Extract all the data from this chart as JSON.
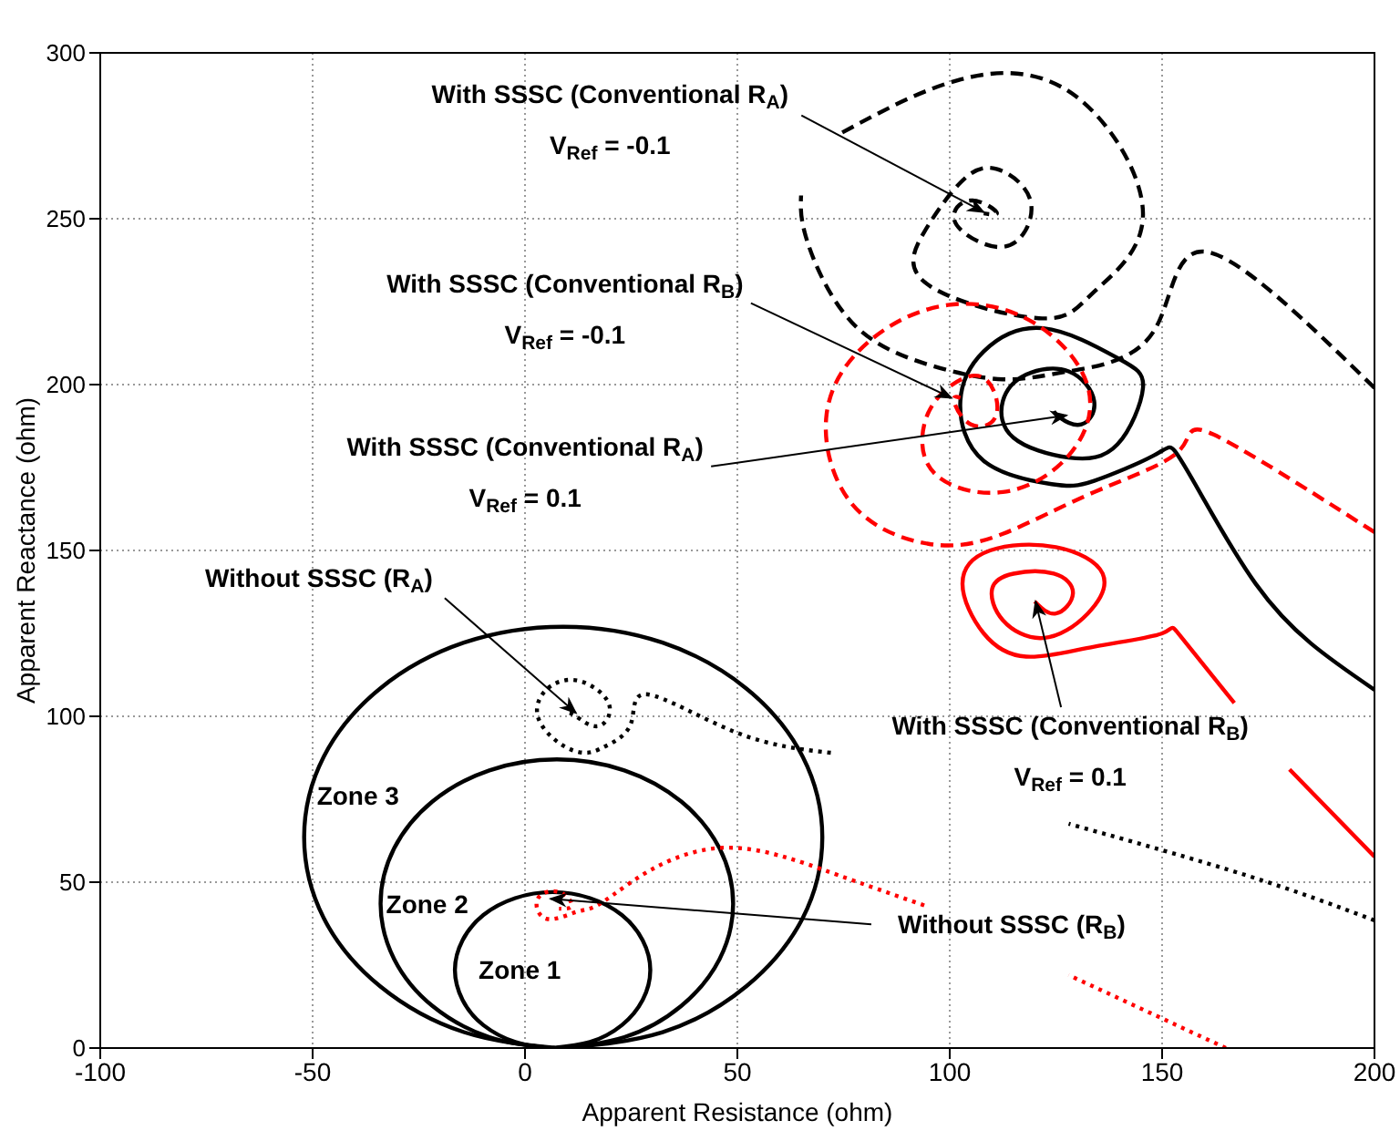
{
  "chart_data": {
    "type": "line",
    "xlabel": "Apparent Resistance (ohm)",
    "ylabel": "Apparent Reactance (ohm)",
    "xlim": [
      -100,
      200
    ],
    "xticks": [
      -100,
      -50,
      0,
      50,
      100,
      150,
      200
    ],
    "ylim": [
      0,
      300
    ],
    "yticks": [
      0,
      50,
      100,
      150,
      200,
      250,
      300
    ],
    "grid": true,
    "series": [
      {
        "name": "Zone 1",
        "color": "#000000",
        "line_style": "solid",
        "x": [
          6.5,
          15.3,
          22.8,
          27.7,
          29.5,
          27.7,
          22.8,
          15.3,
          6.5,
          -2.3,
          -9.8,
          -14.7,
          -16.5,
          -14.7,
          -9.8,
          -2.3,
          4.5
        ],
        "values": [
          0,
          1.8,
          6.9,
          14.5,
          23.5,
          32.5,
          40.1,
          45.2,
          47,
          45.2,
          40.1,
          32.5,
          23.5,
          14.5,
          6.9,
          1.8,
          0.1
        ]
      },
      {
        "name": "Zone 2",
        "color": "#000000",
        "line_style": "solid",
        "x": [
          7.5,
          23.4,
          36.8,
          45.8,
          49,
          45.8,
          36.8,
          23.4,
          7.5,
          -8.4,
          -21.8,
          -30.8,
          -34,
          -30.8,
          -21.8,
          -8.4,
          5.5
        ],
        "values": [
          0,
          3.3,
          12.7,
          26.8,
          43.5,
          60.2,
          74.3,
          83.7,
          87,
          83.7,
          74.3,
          60.2,
          43.5,
          26.8,
          12.7,
          3.3,
          0.1
        ]
      },
      {
        "name": "Zone 3",
        "color": "#000000",
        "line_style": "solid",
        "x": [
          9,
          32.4,
          52.1,
          65.4,
          70,
          65.4,
          52.1,
          32.4,
          9,
          -14.4,
          -34.1,
          -47.4,
          -52,
          -47.4,
          -34.1,
          -14.4,
          7
        ],
        "values": [
          0,
          4.8,
          18.6,
          39.2,
          63.5,
          87.8,
          108.4,
          122.2,
          127,
          122.2,
          108.4,
          87.8,
          63.5,
          39.2,
          18.6,
          4.8,
          0.1
        ]
      },
      {
        "color": "#000000",
        "line_style": "dotted",
        "x": [
          200,
          170,
          128,
          100,
          72,
          50,
          29,
          25,
          19,
          14,
          8,
          3,
          5,
          11,
          17,
          20,
          17,
          12,
          10
        ],
        "values": [
          38.5,
          52,
          67.6,
          null,
          89,
          95,
          106.6,
          98,
          91,
          89,
          92,
          100,
          108,
          111,
          108,
          102,
          97,
          100,
          101
        ]
      },
      {
        "color": "#ff0000",
        "line_style": "dotted",
        "x": [
          165,
          128,
          111,
          94,
          74,
          60,
          47,
          35,
          25,
          17,
          12,
          5,
          3,
          8,
          11,
          8
        ],
        "values": [
          0,
          22,
          null,
          43,
          52,
          58,
          60.4,
          57,
          50,
          43,
          41,
          39,
          45,
          47,
          43,
          42
        ]
      },
      {
        "color": "#000000",
        "line_style": "solid",
        "x": [
          200,
          185,
          172,
          160,
          153,
          148,
          134,
          124,
          108,
          102.5,
          108,
          122,
          139.5,
          145.5,
          139.5,
          128,
          115,
          112.5,
          118,
          128,
          134,
          131,
          126,
          124.5
        ],
        "values": [
          108,
          122,
          140,
          165,
          180,
          178.6,
          171,
          170,
          177,
          195,
          210,
          217,
          208,
          199,
          182,
          178,
          184,
          195,
          203,
          204,
          195,
          188,
          190,
          192
        ]
      },
      {
        "color": "#ff0000",
        "line_style": "solid",
        "x": [
          200,
          180,
          173,
          167,
          154,
          150,
          134,
          118,
          108,
          103,
          109.5,
          125,
          136,
          132.5,
          122,
          112.5,
          110,
          115,
          124.5,
          129,
          125,
          120
        ],
        "values": [
          57.7,
          84,
          null,
          104,
          124.7,
          125,
          121,
          118,
          125,
          140,
          150,
          151,
          143,
          131,
          123.6,
          129,
          138.5,
          143,
          143,
          137,
          131,
          134.6
        ]
      },
      {
        "color": "#000000",
        "line_style": "dashed",
        "x": [
          200,
          160.5,
          148,
          128,
          112.5,
          95,
          77,
          66.5,
          65,
          70,
          74.7,
          102.6,
          129.6,
          145.5,
          134,
          121,
          95,
          94,
          102.6,
          111,
          119,
          115.5,
          107,
          101,
          105,
          111,
          108
        ],
        "values": [
          199,
          240,
          216,
          204,
          201.6,
          206,
          218.7,
          243,
          257,
          null,
          276,
          292,
          287,
          251.6,
          228,
          220,
          230,
          246,
          261,
          265,
          255.5,
          243,
          243,
          250,
          255.5,
          252,
          251.6
        ]
      },
      {
        "color": "#ff0000",
        "line_style": "dashed",
        "x": [
          200,
          162,
          154,
          134,
          112.5,
          95,
          77,
          71,
          81,
          99.6,
          119.7,
          132.6,
          128,
          112.5,
          96.6,
          94,
          99.6,
          108,
          111,
          105,
          101,
          102.5
        ],
        "values": [
          155.5,
          185,
          180,
          167.6,
          155,
          152,
          164,
          191,
          213,
          224,
          218.7,
          199,
          178.6,
          167.6,
          173,
          188,
          199,
          202,
          191,
          188,
          195,
          196
        ]
      }
    ],
    "annotations": [
      {
        "text": "With SSSC (Conventional R$_{A}$)",
        "x": 108,
        "y": 252
      },
      "V$_{Ref}$ = -0.1",
      {
        "text": "With SSSC (Conventional R$_{B}$)",
        "x": 100.4,
        "y": 196
      },
      "V$_{Ref}$ = -0.1",
      {
        "text": "With SSSC (Conventional R$_{A}$)",
        "x": 127.5,
        "y": 190.7
      },
      "V$_{Ref}$ = 0.1",
      {
        "text": "Without SSSC (R$_{A}$)",
        "x": 12,
        "y": 101
      },
      {
        "text": "With SSSC (Conventional R$_{B}$)",
        "x": 120.2,
        "y": 134.6
      },
      "V$_{Ref}$ = 0.1",
      {
        "text": "Without SSSC (R$_{B}$)",
        "x": 6,
        "y": 45
      }
    ]
  }
}
